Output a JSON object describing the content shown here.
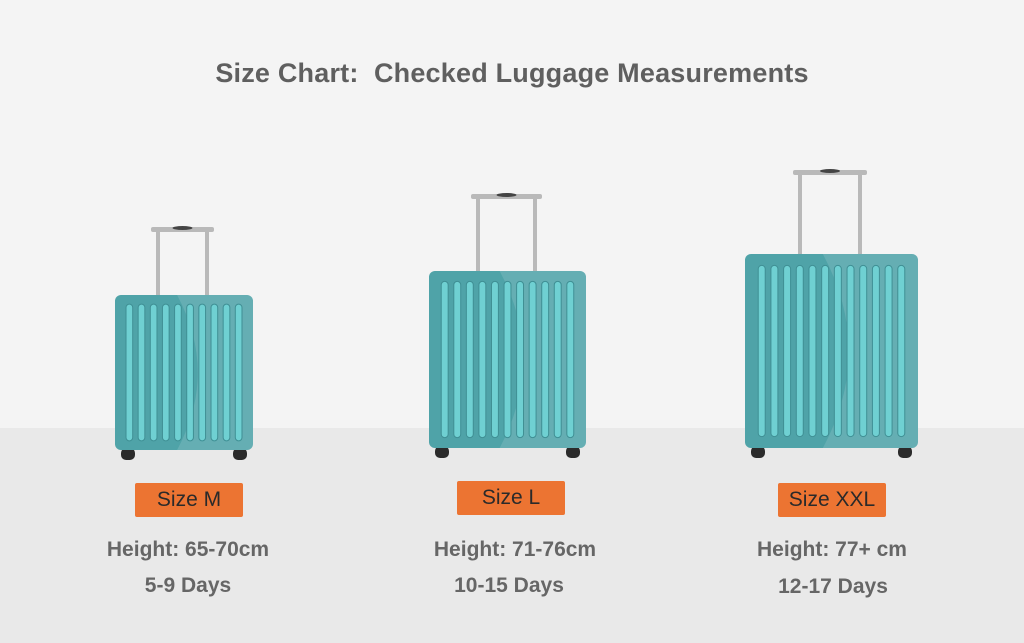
{
  "title": "Size Chart:  Checked Luggage Measurements",
  "colors": {
    "background": "#f4f4f4",
    "floor": "#e9e9e9",
    "suitcase": "#4fa3a8",
    "stripe": "#6fd0d2",
    "handle": "#b9b9b9",
    "badge": "#ec7432",
    "text": "#666666"
  },
  "sizes": [
    {
      "label": "Size M",
      "height": "Height: 65-70cm",
      "days": "5-9 Days"
    },
    {
      "label": "Size L",
      "height": "Height: 71-76cm",
      "days": "10-15 Days"
    },
    {
      "label": "Size XXL",
      "height": "Height: 77+ cm",
      "days": "12-17 Days"
    }
  ]
}
